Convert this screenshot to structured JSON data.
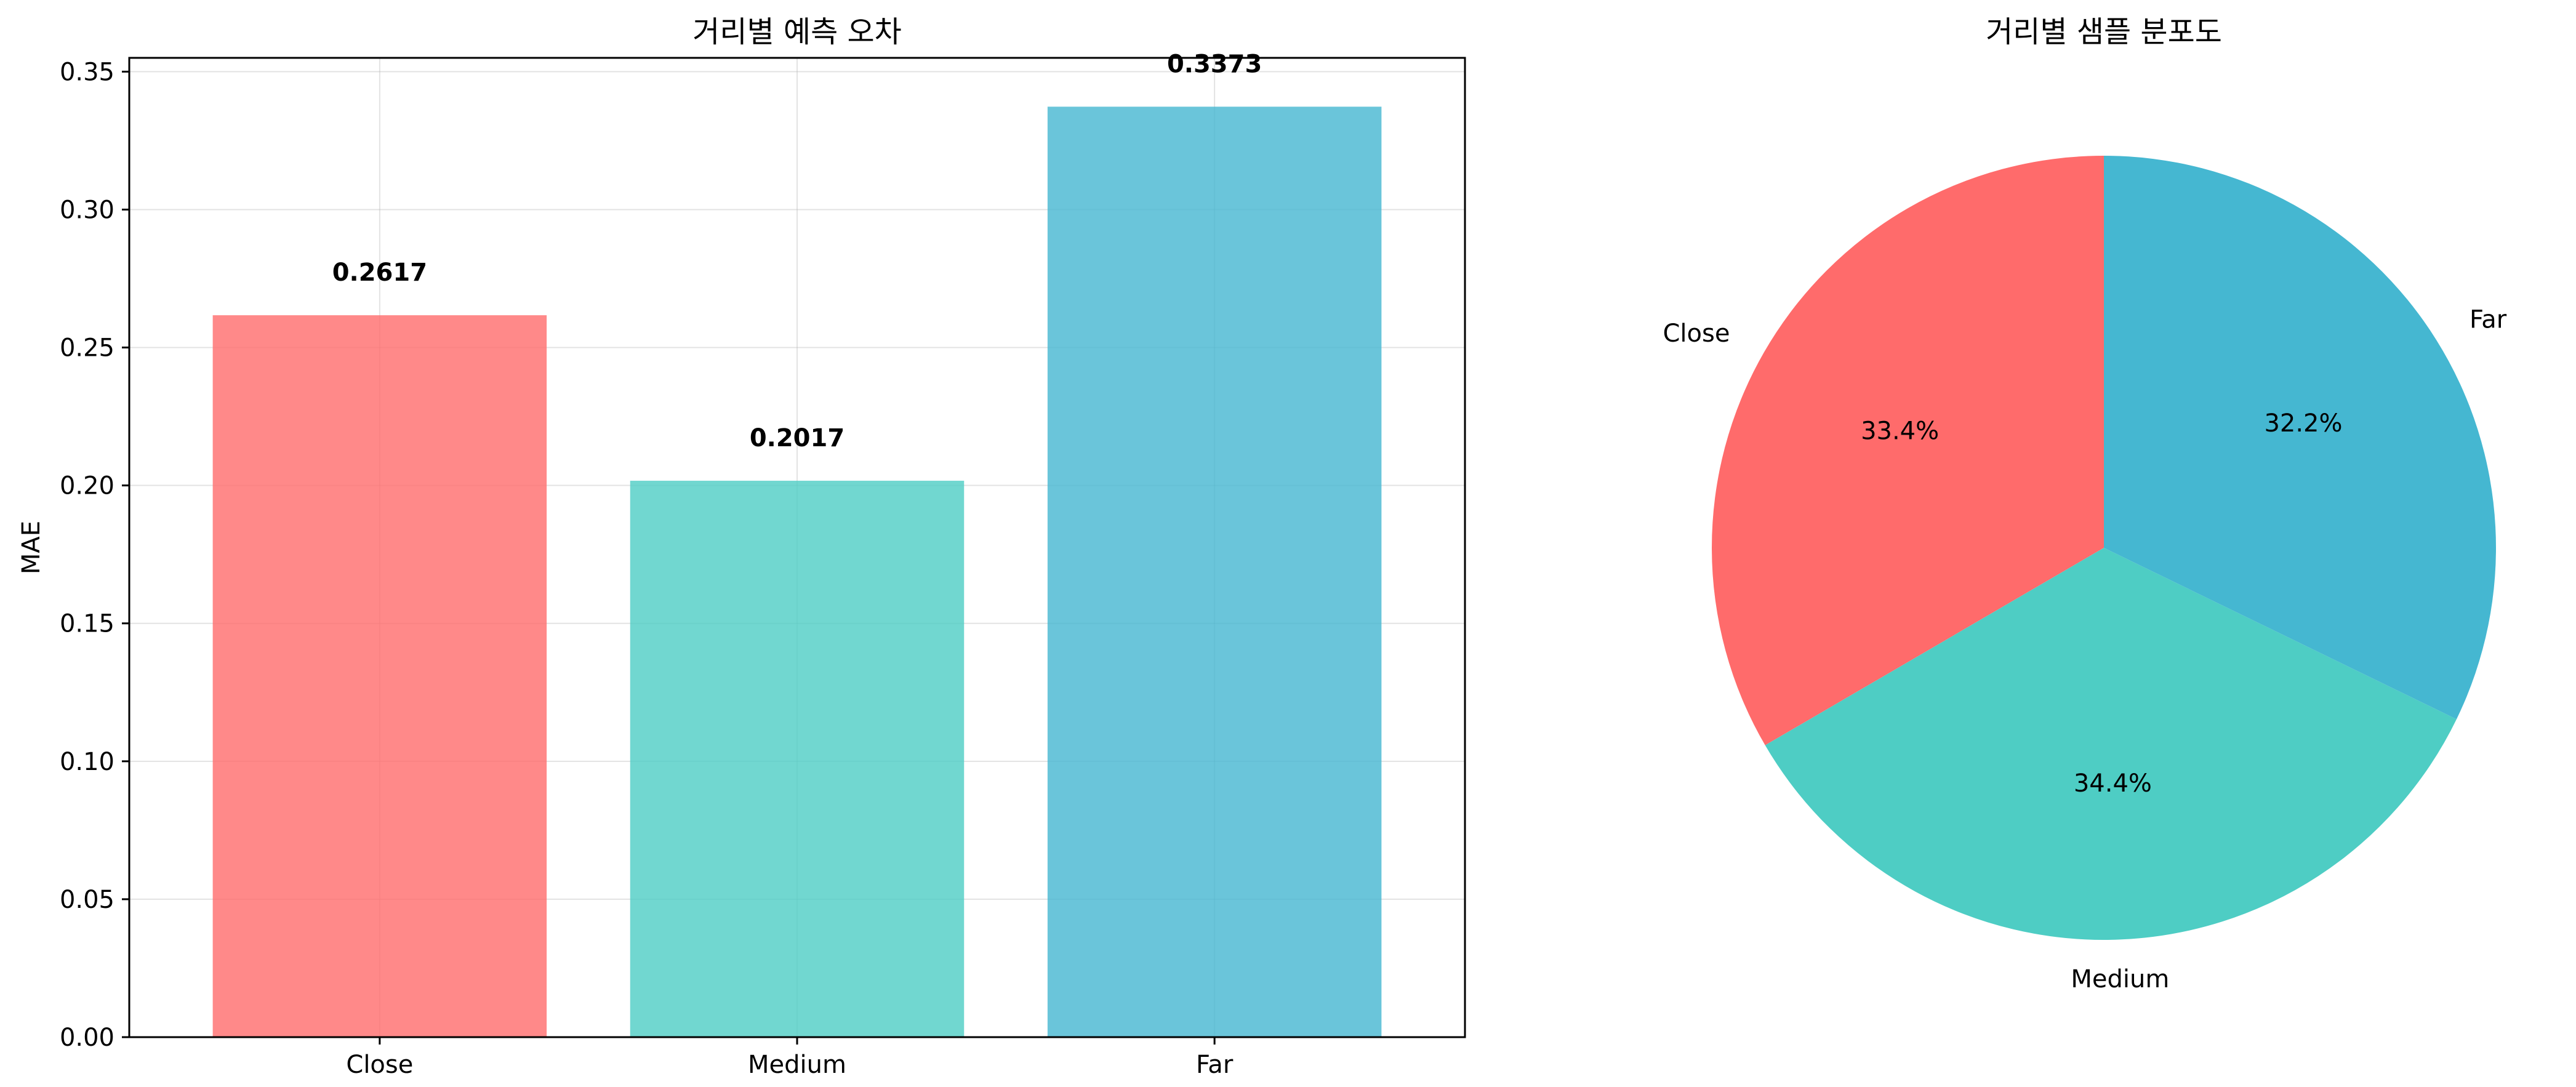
{
  "chart_data": [
    {
      "type": "bar",
      "title": "거리별 예측 오차",
      "xlabel": "",
      "ylabel": "MAE",
      "categories": [
        "Close",
        "Medium",
        "Far"
      ],
      "values": [
        0.2617,
        0.2017,
        0.3373
      ],
      "value_labels": [
        "0.2617",
        "0.2017",
        "0.3373"
      ],
      "colors": [
        "#ff6b6b",
        "#4ecdc4",
        "#45b7d1"
      ],
      "bar_alpha": 0.8,
      "ylim": [
        0,
        0.355
      ],
      "yticks": [
        0,
        0.05,
        0.1,
        0.15,
        0.2,
        0.25,
        0.3,
        0.35
      ],
      "ytick_labels": [
        "0.00",
        "0.05",
        "0.10",
        "0.15",
        "0.20",
        "0.25",
        "0.30",
        "0.35"
      ],
      "grid": true
    },
    {
      "type": "pie",
      "title": "거리별 샘플 분포도",
      "labels": [
        "Close",
        "Medium",
        "Far"
      ],
      "values": [
        33.4,
        34.4,
        32.2
      ],
      "pct_labels": [
        "33.4%",
        "34.4%",
        "32.2%"
      ],
      "colors": [
        "#ff6b6b",
        "#4ecdc4",
        "#45b7d1"
      ],
      "start_angle_deg": 90,
      "direction": "counterclockwise"
    }
  ]
}
